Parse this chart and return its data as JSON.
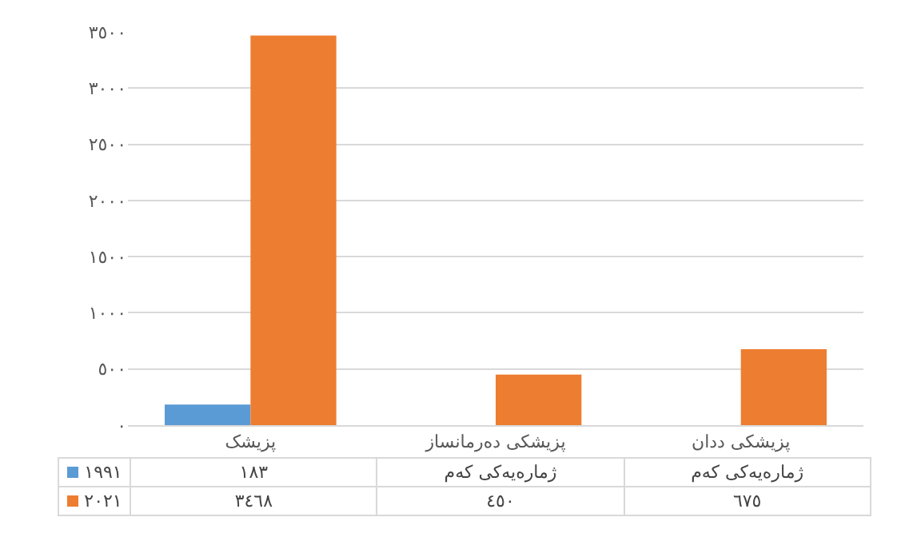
{
  "chart_data": {
    "type": "bar",
    "categories": [
      "پزیشک",
      "پزیشکی دەرمانساز",
      "پزیشکی ددان"
    ],
    "series": [
      {
        "name": "١٩٩١",
        "color": "#5b9bd5",
        "values": [
          183,
          null,
          null
        ],
        "value_labels": [
          "١٨٣",
          "ژمارەیەکی کەم",
          "ژمارەیەکی کەم"
        ]
      },
      {
        "name": "٢٠٢١",
        "color": "#ed7d31",
        "values": [
          3468,
          450,
          675
        ],
        "value_labels": [
          "٣٤٦٨",
          "٤٥٠",
          "٦٧٥"
        ]
      }
    ],
    "ylim": [
      0,
      3500
    ],
    "yticks": [
      {
        "value": 0,
        "label": "٠"
      },
      {
        "value": 500,
        "label": "٥٠٠"
      },
      {
        "value": 1000,
        "label": "١٠٠٠"
      },
      {
        "value": 1500,
        "label": "١٥٠٠"
      },
      {
        "value": 2000,
        "label": "٢٠٠٠"
      },
      {
        "value": 2500,
        "label": "٢٥٠٠"
      },
      {
        "value": 3000,
        "label": "٣٠٠٠"
      },
      {
        "value": 3500,
        "label": "٣٥٠٠"
      }
    ],
    "grid": true,
    "legend": "bottom"
  }
}
